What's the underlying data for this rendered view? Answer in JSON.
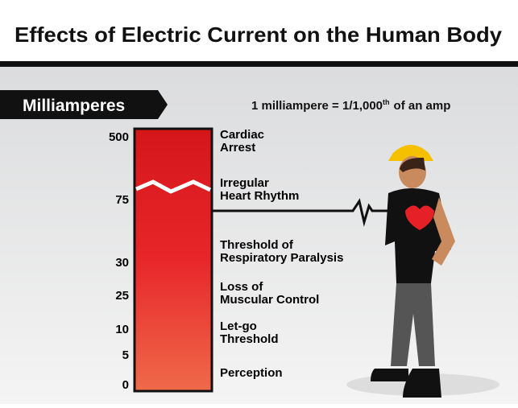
{
  "header": {
    "title": "Effects of Electric Current on the Human Body"
  },
  "badge": "Milliamperes",
  "note": {
    "main": "1 milliampere = 1/1,000",
    "sup": "th",
    "rest": "of an amp"
  },
  "scale": {
    "ticks": [
      "500",
      "75",
      "30",
      "25",
      "10",
      "5",
      "0"
    ]
  },
  "effects": [
    [
      "Cardiac",
      "Arrest"
    ],
    [
      "Irregular",
      "Heart Rhythm"
    ],
    [
      "Threshold of",
      "Respiratory Paralysis"
    ],
    [
      "Loss of",
      "Muscular Control"
    ],
    [
      "Let-go",
      "Threshold"
    ],
    [
      "Perception"
    ]
  ]
}
